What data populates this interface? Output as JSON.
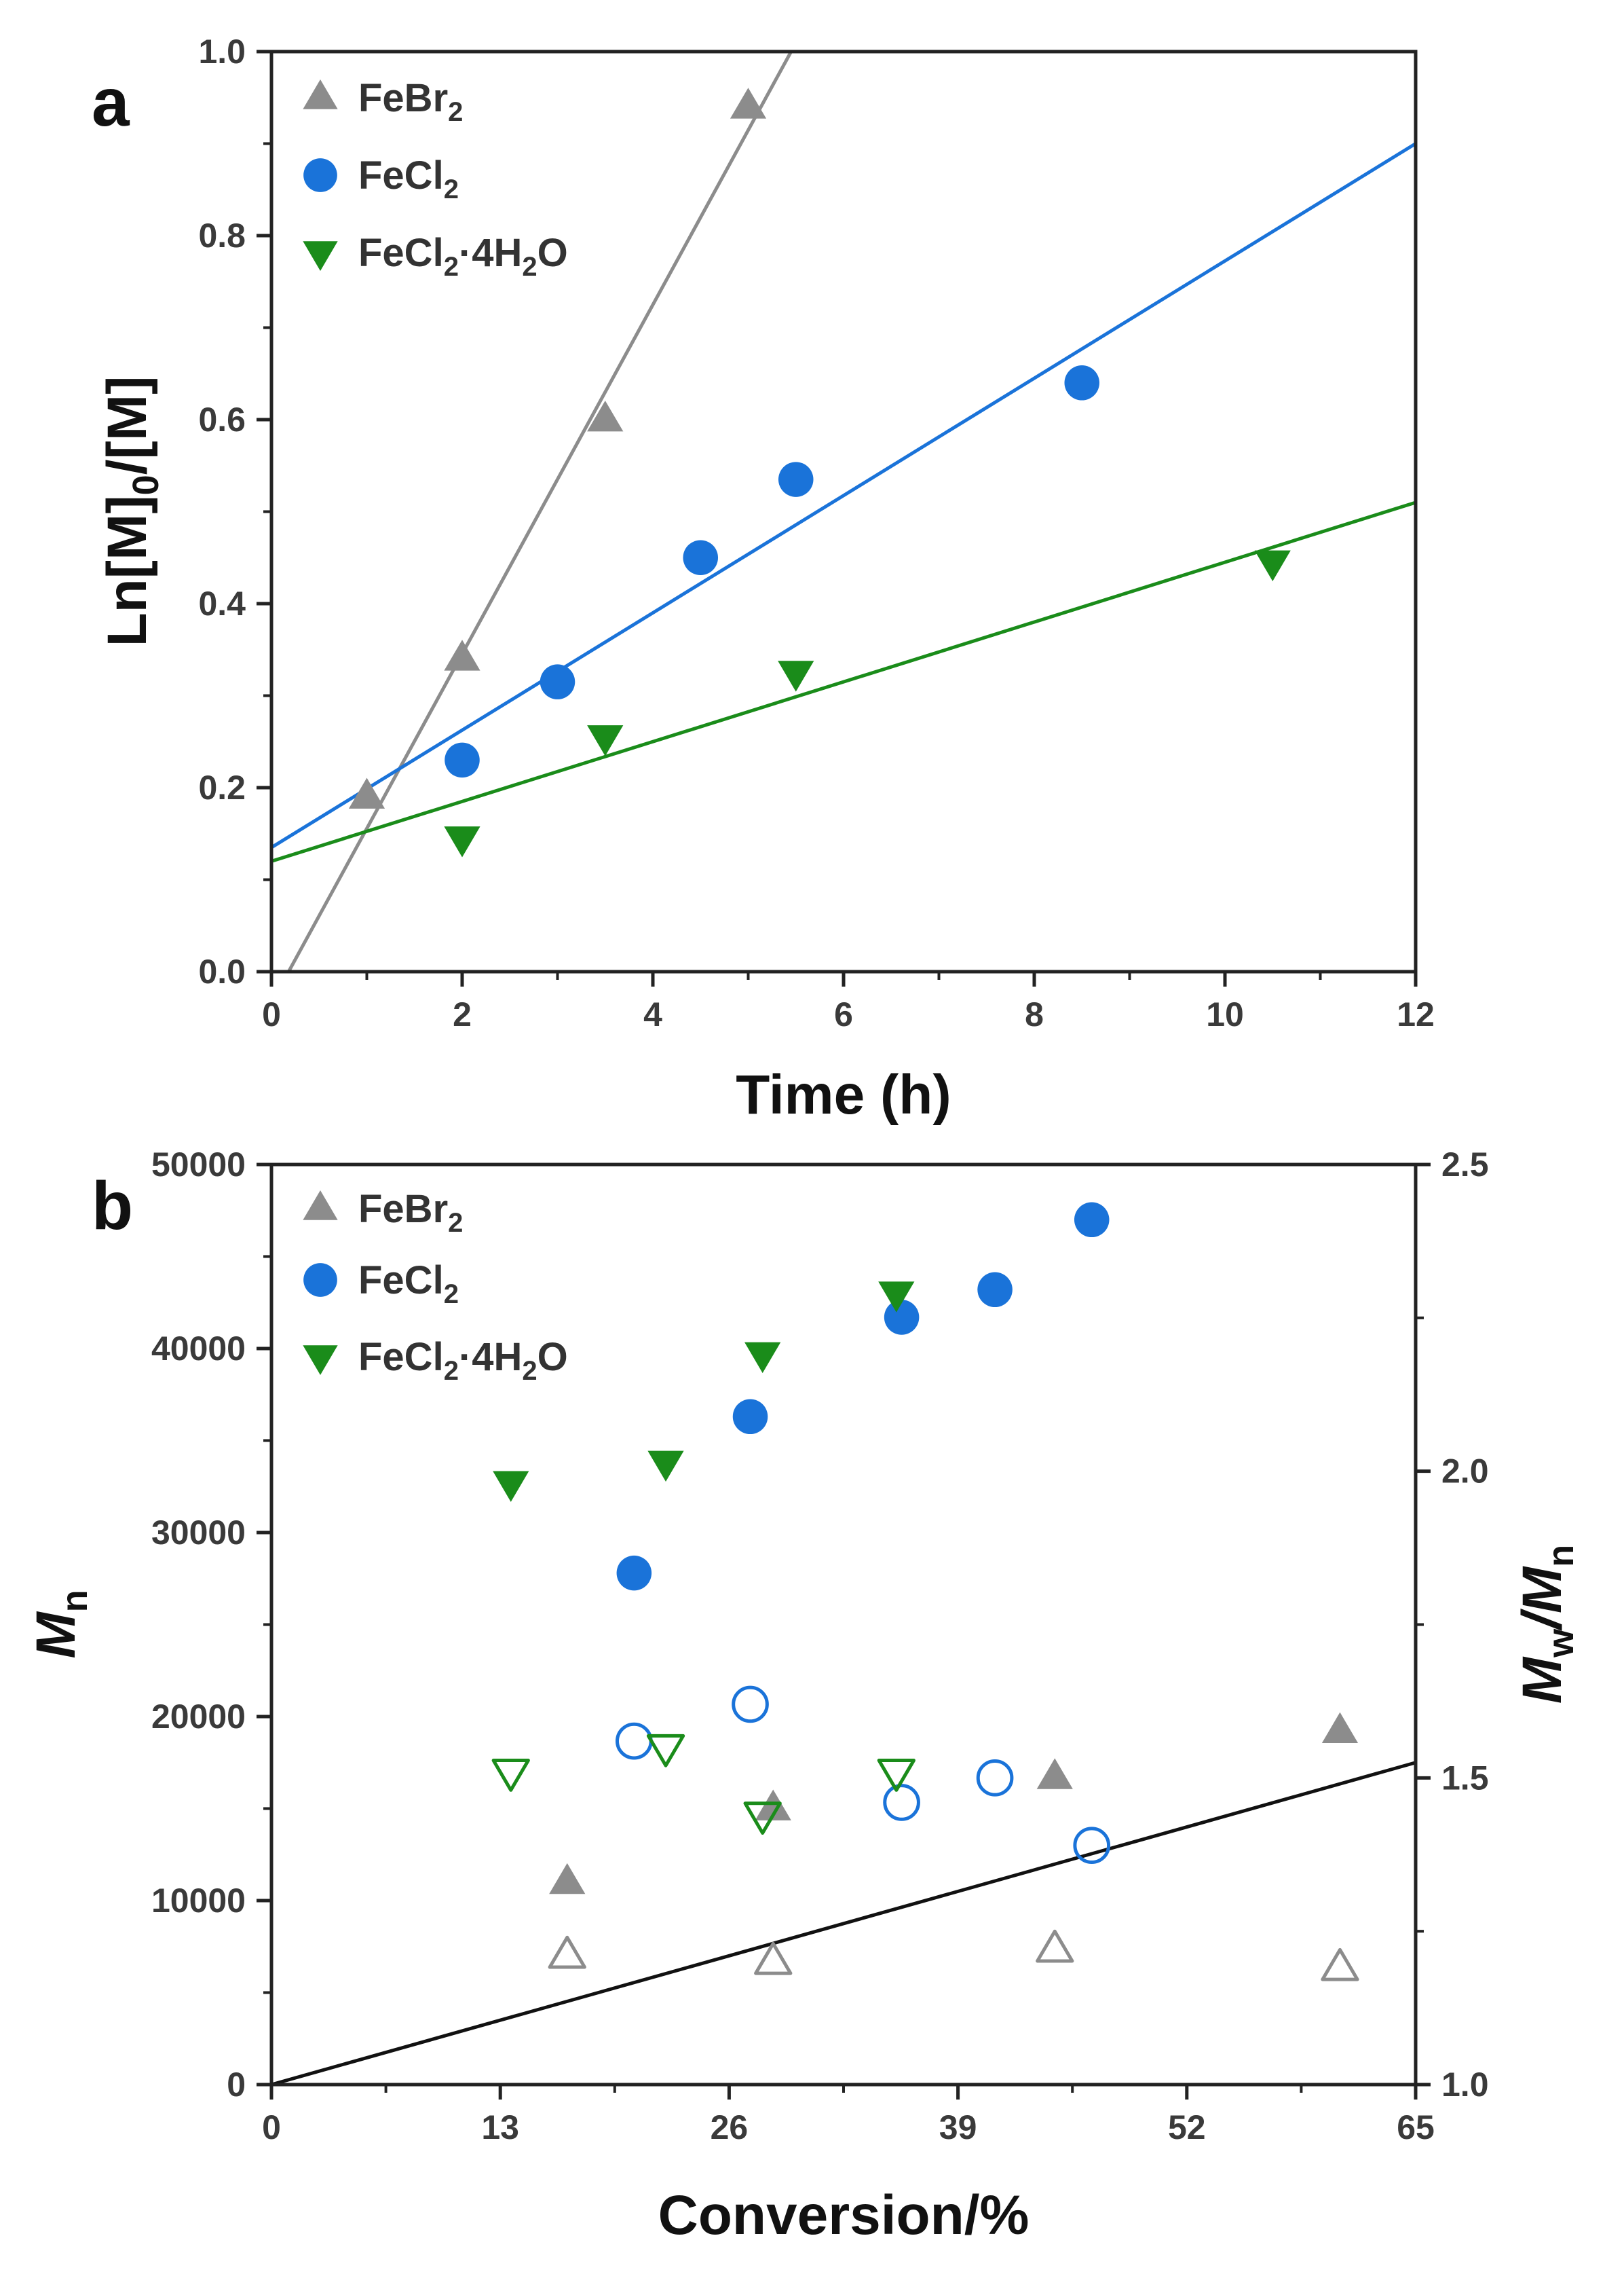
{
  "chart_data": [
    {
      "type": "scatter",
      "panel_label": "a",
      "xlabel": "Time (h)",
      "ylabel": "Ln[M]0/[M]",
      "ylabel_main": "Ln[M]",
      "ylabel_sub": "0",
      "ylabel_rest": "/[M]",
      "xlim": [
        0,
        12
      ],
      "ylim": [
        0,
        1.0
      ],
      "x_ticks": [
        "0",
        "2",
        "4",
        "6",
        "8",
        "10",
        "12"
      ],
      "y_ticks": [
        "0.0",
        "0.2",
        "0.4",
        "0.6",
        "0.8",
        "1.0"
      ],
      "legend_placement": "top-left",
      "series": [
        {
          "name": "FeBr2",
          "legend": {
            "base": "FeBr",
            "sub": "2",
            "rest": ""
          },
          "marker": "triangle-up",
          "filled": true,
          "color": "#8c8c8c",
          "points": [
            [
              1.0,
              0.19
            ],
            [
              2.0,
              0.34
            ],
            [
              3.5,
              0.6
            ],
            [
              5.0,
              0.94
            ]
          ],
          "fit_line": [
            [
              0.18,
              0.0
            ],
            [
              5.45,
              1.0
            ]
          ]
        },
        {
          "name": "FeCl2",
          "legend": {
            "base": "FeCl",
            "sub": "2",
            "rest": ""
          },
          "marker": "circle",
          "filled": true,
          "color": "#1a73d9",
          "points": [
            [
              2.0,
              0.23
            ],
            [
              3.0,
              0.315
            ],
            [
              4.5,
              0.45
            ],
            [
              5.5,
              0.535
            ],
            [
              8.5,
              0.64
            ]
          ],
          "fit_line": [
            [
              0.0,
              0.135
            ],
            [
              12.0,
              0.9
            ]
          ]
        },
        {
          "name": "FeCl2·4H2O",
          "legend": {
            "base": "FeCl",
            "sub": "2",
            "rest": "·4H",
            "sub2": "2",
            "rest2": "O"
          },
          "marker": "triangle-down",
          "filled": true,
          "color": "#1a8c1a",
          "points": [
            [
              2.0,
              0.145
            ],
            [
              3.5,
              0.255
            ],
            [
              5.5,
              0.325
            ],
            [
              10.5,
              0.445
            ]
          ],
          "fit_line": [
            [
              0.0,
              0.12
            ],
            [
              12.0,
              0.51
            ]
          ]
        }
      ]
    },
    {
      "type": "scatter",
      "panel_label": "b",
      "xlabel": "Conversion/%",
      "ylabel": "Mn",
      "ylabel_main": "M",
      "ylabel_sub": "n",
      "y2label": "Mw/Mn",
      "y2label_parts": [
        "M",
        "w",
        "/M",
        "n"
      ],
      "xlim": [
        0,
        65
      ],
      "ylim": [
        0,
        50000
      ],
      "y2lim": [
        1.0,
        2.5
      ],
      "x_ticks": [
        "0",
        "13",
        "26",
        "39",
        "52",
        "65"
      ],
      "y_ticks": [
        "0",
        "10000",
        "20000",
        "30000",
        "40000",
        "50000"
      ],
      "y2_ticks": [
        "1.0",
        "1.5",
        "2.0",
        "2.5"
      ],
      "legend_placement": "top-left",
      "theory_line": [
        [
          0,
          0
        ],
        [
          65,
          17500
        ]
      ],
      "series": [
        {
          "name": "FeBr2",
          "legend": {
            "base": "FeBr",
            "sub": "2",
            "rest": ""
          },
          "marker": "triangle-up",
          "color": "#8c8c8c",
          "Mn": [
            [
              16.8,
              11000
            ],
            [
              28.5,
              15000
            ],
            [
              44.5,
              16700
            ],
            [
              60.7,
              19200
            ]
          ],
          "dispersity": [
            [
              16.8,
              1.21
            ],
            [
              28.5,
              1.2
            ],
            [
              44.5,
              1.22
            ],
            [
              60.7,
              1.19
            ]
          ]
        },
        {
          "name": "FeCl2",
          "legend": {
            "base": "FeCl",
            "sub": "2",
            "rest": ""
          },
          "marker": "circle",
          "color": "#1a73d9",
          "Mn": [
            [
              20.6,
              27800
            ],
            [
              27.2,
              36300
            ],
            [
              35.8,
              41700
            ],
            [
              41.1,
              43200
            ],
            [
              46.6,
              47000
            ]
          ],
          "dispersity": [
            [
              20.6,
              1.56
            ],
            [
              27.2,
              1.62
            ],
            [
              35.8,
              1.46
            ],
            [
              41.1,
              1.5
            ],
            [
              46.6,
              1.39
            ]
          ]
        },
        {
          "name": "FeCl2·4H2O",
          "legend": {
            "base": "FeCl",
            "sub": "2",
            "rest": "·4H",
            "sub2": "2",
            "rest2": "O"
          },
          "marker": "triangle-down",
          "color": "#1a8c1a",
          "Mn": [
            [
              13.6,
              32700
            ],
            [
              22.4,
              33800
            ],
            [
              27.9,
              39700
            ],
            [
              35.5,
              43000
            ]
          ],
          "dispersity": [
            [
              13.6,
              1.51
            ],
            [
              22.4,
              1.55
            ],
            [
              27.9,
              1.44
            ],
            [
              35.5,
              1.51
            ]
          ]
        }
      ]
    }
  ]
}
